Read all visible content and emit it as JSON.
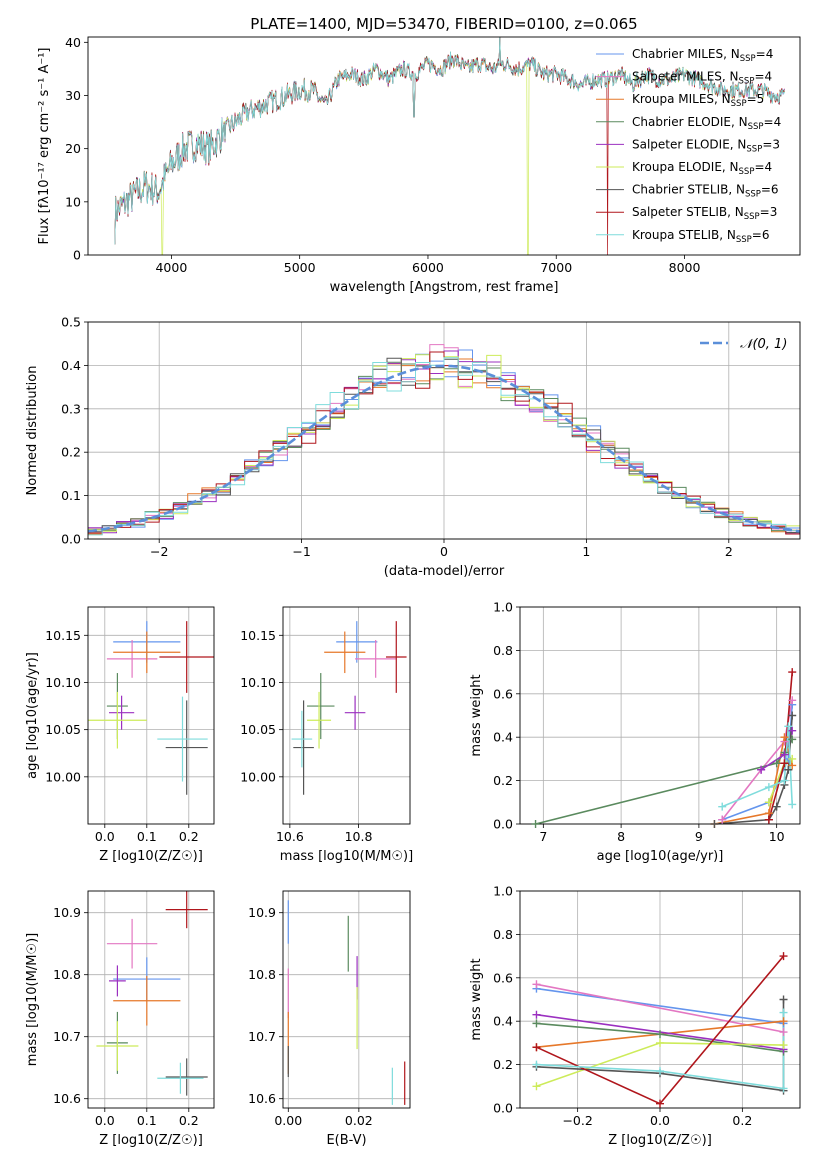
{
  "figure": {
    "title": "PLATE=1400, MJD=53470, FIBERID=0100, z=0.065"
  },
  "models": [
    {
      "name": "Chabrier MILES",
      "nssp": "4",
      "color": "#6495ED"
    },
    {
      "name": "Salpeter MILES",
      "nssp": "4",
      "color": "#E377C2"
    },
    {
      "name": "Kroupa MILES",
      "nssp": "5",
      "color": "#E6782A"
    },
    {
      "name": "Chabrier ELODIE",
      "nssp": "4",
      "color": "#5A8A5E"
    },
    {
      "name": "Salpeter ELODIE",
      "nssp": "3",
      "color": "#9B30C0"
    },
    {
      "name": "Kroupa ELODIE",
      "nssp": "4",
      "color": "#CDEB5A"
    },
    {
      "name": "Chabrier STELIB",
      "nssp": "6",
      "color": "#555555"
    },
    {
      "name": "Salpeter STELIB",
      "nssp": "3",
      "color": "#B0161C"
    },
    {
      "name": "Kroupa STELIB",
      "nssp": "6",
      "color": "#7FDCDC"
    }
  ],
  "chart_data": [
    {
      "id": "spectrum",
      "type": "line",
      "xlabel": "wavelength [Angstrom, rest frame]",
      "ylabel": "Flux [fλ10⁻¹⁷ erg cm⁻² s⁻¹ A⁻¹]",
      "xlim": [
        3350,
        8900
      ],
      "ylim": [
        0,
        41
      ],
      "xticks": [
        4000,
        5000,
        6000,
        7000,
        8000
      ],
      "yticks": [
        0,
        10,
        20,
        30,
        40
      ],
      "grid": false,
      "legend": "right",
      "continuum": {
        "x": [
          3560,
          3700,
          3800,
          3900,
          4000,
          4100,
          4200,
          4300,
          4400,
          4500,
          4600,
          4700,
          4800,
          4900,
          5000,
          5100,
          5200,
          5300,
          5400,
          5500,
          5600,
          5700,
          5800,
          5900,
          6000,
          6100,
          6200,
          6300,
          6400,
          6500,
          6600,
          6700,
          6800,
          6900,
          7000,
          7100,
          7200,
          7300,
          7400,
          7500,
          7600,
          7700,
          7800,
          7900,
          8000,
          8100,
          8200,
          8300,
          8400,
          8500,
          8600,
          8700,
          8780
        ],
        "y": [
          8,
          11,
          13,
          12,
          17,
          20,
          21,
          20,
          23,
          25,
          27,
          28,
          29,
          30,
          31,
          31,
          28,
          33,
          34,
          33,
          35,
          33,
          35,
          34,
          36,
          35,
          37,
          35,
          36,
          35,
          36,
          35,
          36,
          34,
          34,
          33,
          32,
          33,
          33,
          34,
          32,
          34,
          33,
          33,
          34,
          33,
          32,
          31,
          31,
          31,
          31,
          30,
          30
        ]
      },
      "features": [
        {
          "x": 3560,
          "y": 2
        },
        {
          "x": 3930,
          "y": 0
        },
        {
          "x": 5890,
          "y": 26
        },
        {
          "x": 6560,
          "y": 41
        },
        {
          "x": 6780,
          "y": 0
        },
        {
          "x": 7400,
          "y": 0
        }
      ]
    },
    {
      "id": "residual-histogram",
      "type": "bar",
      "xlabel": "(data-model)/error",
      "ylabel": "Normed distribution",
      "xlim": [
        -2.5,
        2.5
      ],
      "ylim": [
        0,
        0.5
      ],
      "xticks": [
        -2,
        -1,
        0,
        1,
        2
      ],
      "yticks": [
        0.0,
        0.1,
        0.2,
        0.3,
        0.4,
        0.5
      ],
      "grid": true,
      "bin_width": 0.1,
      "reference_curve": {
        "label": "𝒩(0, 1)",
        "mean": 0,
        "sigma": 1,
        "color": "#5B8FD9"
      },
      "legend": "top-right"
    },
    {
      "id": "age-vs-Z",
      "type": "scatter",
      "xlabel": "Z [log10(Z/Z☉)]",
      "ylabel": "age  [log10(age/yr)]",
      "xlim": [
        -0.04,
        0.26
      ],
      "ylim": [
        9.95,
        10.18
      ],
      "xticks": [
        0.0,
        0.1,
        0.2
      ],
      "yticks": [
        10.0,
        10.05,
        10.1,
        10.15
      ],
      "grid": true,
      "points": [
        {
          "x": 0.1,
          "y": 10.143,
          "xerr": 0.08,
          "yerr": 0.022
        },
        {
          "x": 0.065,
          "y": 10.125,
          "xerr": 0.06,
          "yerr": 0.02
        },
        {
          "x": 0.1,
          "y": 10.132,
          "xerr": 0.08,
          "yerr": 0.022
        },
        {
          "x": 0.03,
          "y": 10.075,
          "xerr": 0.025,
          "yerr": 0.035
        },
        {
          "x": 0.04,
          "y": 10.068,
          "xerr": 0.03,
          "yerr": 0.018
        },
        {
          "x": 0.03,
          "y": 10.06,
          "xerr": 0.07,
          "yerr": 0.03
        },
        {
          "x": 0.195,
          "y": 10.031,
          "xerr": 0.05,
          "yerr": 0.05
        },
        {
          "x": 0.195,
          "y": 10.127,
          "xerr": 0.065,
          "yerr": 0.038
        },
        {
          "x": 0.185,
          "y": 10.04,
          "xerr": 0.06,
          "yerr": 0.045
        }
      ]
    },
    {
      "id": "age-vs-mass",
      "type": "scatter",
      "xlabel": "mass [log10(M/M☉)]",
      "ylabel": "",
      "xlim": [
        10.58,
        10.95
      ],
      "ylim": [
        9.95,
        10.18
      ],
      "xticks": [
        10.6,
        10.8
      ],
      "yticks": [
        10.0,
        10.05,
        10.1,
        10.15
      ],
      "grid": true,
      "points": [
        {
          "x": 10.795,
          "y": 10.143,
          "xerr": 0.06,
          "yerr": 0.022
        },
        {
          "x": 10.85,
          "y": 10.125,
          "xerr": 0.06,
          "yerr": 0.02
        },
        {
          "x": 10.76,
          "y": 10.132,
          "xerr": 0.06,
          "yerr": 0.022
        },
        {
          "x": 10.69,
          "y": 10.075,
          "xerr": 0.04,
          "yerr": 0.035
        },
        {
          "x": 10.79,
          "y": 10.068,
          "xerr": 0.03,
          "yerr": 0.018
        },
        {
          "x": 10.685,
          "y": 10.06,
          "xerr": 0.035,
          "yerr": 0.03
        },
        {
          "x": 10.64,
          "y": 10.031,
          "xerr": 0.03,
          "yerr": 0.05
        },
        {
          "x": 10.91,
          "y": 10.127,
          "xerr": 0.03,
          "yerr": 0.038
        },
        {
          "x": 10.635,
          "y": 10.04,
          "xerr": 0.03,
          "yerr": 0.03
        }
      ]
    },
    {
      "id": "mass-weight-vs-age",
      "type": "line",
      "xlabel": "age  [log10(age/yr)]",
      "ylabel": "mass weight",
      "xlim": [
        6.7,
        10.3
      ],
      "ylim": [
        0,
        1
      ],
      "xticks": [
        7,
        8,
        9,
        10
      ],
      "yticks": [
        0.0,
        0.2,
        0.4,
        0.6,
        0.8,
        1.0
      ],
      "grid": true,
      "series": [
        {
          "x": [
            9.3,
            9.9,
            10.15,
            10.2
          ],
          "y": [
            0.02,
            0.1,
            0.3,
            0.55
          ]
        },
        {
          "x": [
            9.3,
            9.8,
            10.1,
            10.2
          ],
          "y": [
            0.02,
            0.25,
            0.38,
            0.57
          ]
        },
        {
          "x": [
            9.2,
            9.9,
            10.1,
            10.2
          ],
          "y": [
            0.0,
            0.05,
            0.4,
            0.27
          ]
        },
        {
          "x": [
            6.9,
            10.0,
            10.1,
            10.2
          ],
          "y": [
            0.0,
            0.28,
            0.33,
            0.39
          ]
        },
        {
          "x": [
            9.8,
            10.1,
            10.2
          ],
          "y": [
            0.25,
            0.32,
            0.43
          ]
        },
        {
          "x": [
            9.9,
            10.1,
            10.2
          ],
          "y": [
            0.1,
            0.28,
            0.3
          ]
        },
        {
          "x": [
            9.2,
            9.9,
            10.0,
            10.1,
            10.15,
            10.2
          ],
          "y": [
            0.0,
            0.02,
            0.08,
            0.18,
            0.25,
            0.5
          ]
        },
        {
          "x": [
            9.9,
            10.1,
            10.2
          ],
          "y": [
            0.02,
            0.28,
            0.7
          ]
        },
        {
          "x": [
            9.3,
            9.9,
            10.1,
            10.15,
            10.2
          ],
          "y": [
            0.08,
            0.17,
            0.2,
            0.45,
            0.09
          ]
        }
      ]
    },
    {
      "id": "mass-vs-Z",
      "type": "scatter",
      "xlabel": "Z [log10(Z/Z☉)]",
      "ylabel": "mass [log10(M/M☉)]",
      "xlim": [
        -0.04,
        0.26
      ],
      "ylim": [
        10.585,
        10.935
      ],
      "xticks": [
        0.0,
        0.1,
        0.2
      ],
      "yticks": [
        10.6,
        10.7,
        10.8,
        10.9
      ],
      "grid": true,
      "points": [
        {
          "x": 0.1,
          "y": 10.793,
          "xerr": 0.08,
          "yerr": 0.035
        },
        {
          "x": 0.065,
          "y": 10.85,
          "xerr": 0.06,
          "yerr": 0.04
        },
        {
          "x": 0.1,
          "y": 10.758,
          "xerr": 0.08,
          "yerr": 0.04
        },
        {
          "x": 0.03,
          "y": 10.69,
          "xerr": 0.025,
          "yerr": 0.05
        },
        {
          "x": 0.03,
          "y": 10.79,
          "xerr": 0.02,
          "yerr": 0.025
        },
        {
          "x": 0.03,
          "y": 10.685,
          "xerr": 0.05,
          "yerr": 0.04
        },
        {
          "x": 0.195,
          "y": 10.635,
          "xerr": 0.05,
          "yerr": 0.03
        },
        {
          "x": 0.195,
          "y": 10.905,
          "xerr": 0.05,
          "yerr": 0.03
        },
        {
          "x": 0.18,
          "y": 10.633,
          "xerr": 0.055,
          "yerr": 0.025
        }
      ]
    },
    {
      "id": "mass-vs-EBV",
      "type": "scatter",
      "xlabel": "E(B-V)",
      "ylabel": "",
      "xlim": [
        -0.0015,
        0.0345
      ],
      "ylim": [
        10.585,
        10.935
      ],
      "xticks": [
        0.0,
        0.02
      ],
      "yticks": [
        10.6,
        10.7,
        10.8,
        10.9
      ],
      "grid": true,
      "points": [
        {
          "x": 0.0,
          "y": 10.885,
          "xerr": 0,
          "yerr": 0.035
        },
        {
          "x": 0.0,
          "y": 10.77,
          "xerr": 0,
          "yerr": 0.04
        },
        {
          "x": 0.0,
          "y": 10.69,
          "xerr": 0,
          "yerr": 0.05
        },
        {
          "x": 0.017,
          "y": 10.85,
          "xerr": 0,
          "yerr": 0.045
        },
        {
          "x": 0.0195,
          "y": 10.795,
          "xerr": 0,
          "yerr": 0.035
        },
        {
          "x": 0.0195,
          "y": 10.73,
          "xerr": 0,
          "yerr": 0.05
        },
        {
          "x": 0.0,
          "y": 10.66,
          "xerr": 0,
          "yerr": 0.025
        },
        {
          "x": 0.033,
          "y": 10.625,
          "xerr": 0,
          "yerr": 0.035
        },
        {
          "x": 0.0295,
          "y": 10.62,
          "xerr": 0,
          "yerr": 0.03
        }
      ]
    },
    {
      "id": "mass-weight-vs-Z",
      "type": "line",
      "xlabel": "Z [log10(Z/Z☉)]",
      "ylabel": "mass weight",
      "xlim": [
        -0.34,
        0.34
      ],
      "ylim": [
        0,
        1
      ],
      "xticks": [
        -0.2,
        0.0,
        0.2
      ],
      "yticks": [
        0.0,
        0.2,
        0.4,
        0.6,
        0.8,
        1.0
      ],
      "grid": true,
      "series": [
        {
          "x": [
            -0.3,
            0.3
          ],
          "y": [
            0.55,
            0.39
          ]
        },
        {
          "x": [
            -0.3,
            0.3
          ],
          "y": [
            0.57,
            0.35
          ]
        },
        {
          "x": [
            -0.3,
            0.3
          ],
          "y": [
            0.28,
            0.4
          ]
        },
        {
          "x": [
            -0.3,
            0.0,
            0.3
          ],
          "y": [
            0.39,
            0.34,
            0.26
          ]
        },
        {
          "x": [
            -0.3,
            0.3
          ],
          "y": [
            0.43,
            0.27
          ]
        },
        {
          "x": [
            -0.3,
            0.0,
            0.3
          ],
          "y": [
            0.1,
            0.3,
            0.29
          ]
        },
        {
          "x": [
            -0.3,
            0.0,
            0.3,
            0.3
          ],
          "y": [
            0.19,
            0.16,
            0.08,
            0.5
          ]
        },
        {
          "x": [
            -0.3,
            0.0,
            0.3
          ],
          "y": [
            0.28,
            0.02,
            0.7
          ]
        },
        {
          "x": [
            -0.3,
            0.0,
            0.3,
            0.3
          ],
          "y": [
            0.2,
            0.17,
            0.09,
            0.44
          ]
        }
      ]
    }
  ]
}
